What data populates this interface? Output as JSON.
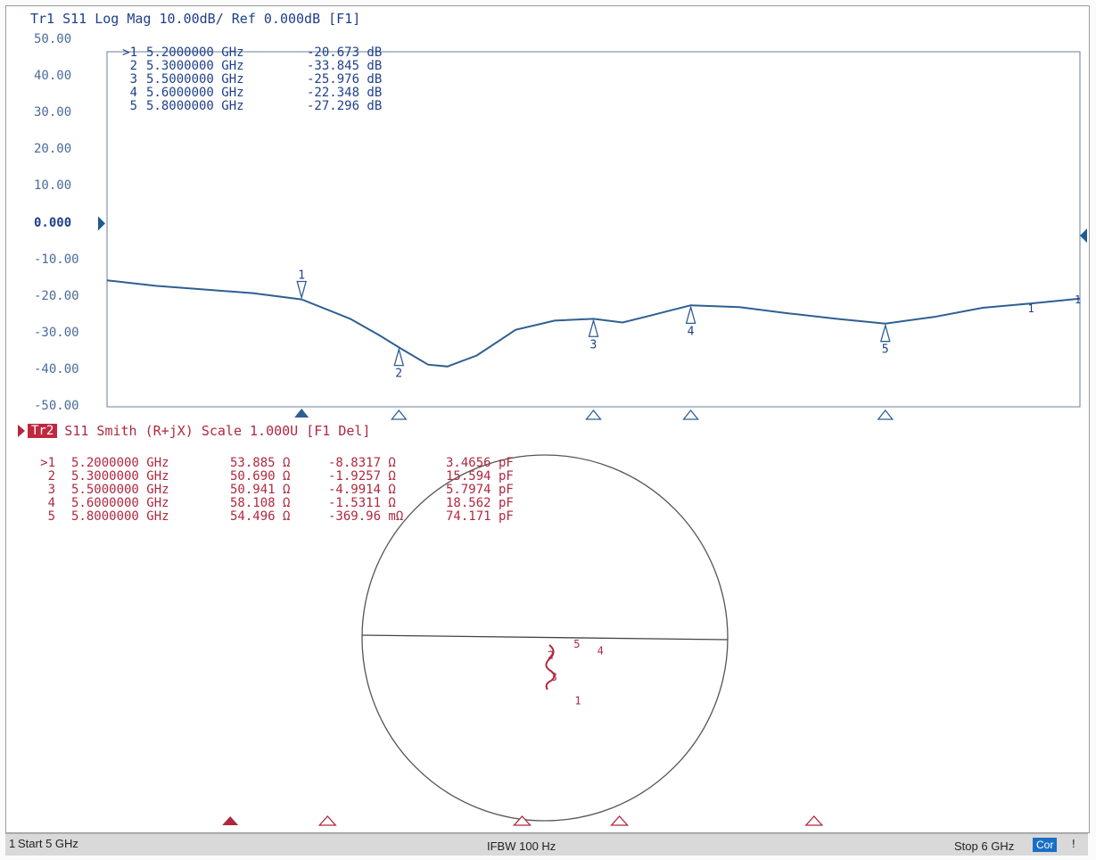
{
  "trace1": {
    "header": "Tr1 S11 Log Mag 10.00dB/ Ref 0.000dB [F1]",
    "y_ticks": [
      "50.00",
      "40.00",
      "30.00",
      "20.00",
      "10.00",
      "0.000",
      "-10.00",
      "-20.00",
      "-30.00",
      "-40.00",
      "-50.00"
    ],
    "markers": [
      {
        "id": ">1",
        "freq": "5.2000000 GHz",
        "value": "-20.673 dB"
      },
      {
        "id": "2",
        "freq": "5.3000000 GHz",
        "value": "-33.845 dB"
      },
      {
        "id": "3",
        "freq": "5.5000000 GHz",
        "value": "-25.976 dB"
      },
      {
        "id": "4",
        "freq": "5.6000000 GHz",
        "value": "-22.348 dB"
      },
      {
        "id": "5",
        "freq": "5.8000000 GHz",
        "value": "-27.296 dB"
      }
    ],
    "marker_labels": [
      "1",
      "2",
      "3",
      "4",
      "5"
    ],
    "trace_color": "#2e5f93"
  },
  "trace2": {
    "badge": "Tr2",
    "header": "S11 Smith (R+jX) Scale 1.000U [F1 Del]",
    "markers": [
      {
        "id": ">1",
        "freq": "5.2000000 GHz",
        "r": "53.885 Ω",
        "x": "-8.8317 Ω",
        "c": "3.4656 pF"
      },
      {
        "id": "2",
        "freq": "5.3000000 GHz",
        "r": "50.690 Ω",
        "x": "-1.9257 Ω",
        "c": "15.594 pF"
      },
      {
        "id": "3",
        "freq": "5.5000000 GHz",
        "r": "50.941 Ω",
        "x": "-4.9914 Ω",
        "c": "5.7974 pF"
      },
      {
        "id": "4",
        "freq": "5.6000000 GHz",
        "r": "58.108 Ω",
        "x": "-1.5311 Ω",
        "c": "18.562 pF"
      },
      {
        "id": "5",
        "freq": "5.8000000 GHz",
        "r": "54.496 Ω",
        "x": "-369.96 mΩ",
        "c": "74.171 pF"
      }
    ],
    "trace_color": "#b0283e"
  },
  "status": {
    "channel": "1",
    "start": "Start 5 GHz",
    "ifbw": "IFBW 100 Hz",
    "stop": "Stop 6 GHz",
    "cor": "Cor",
    "end": "!"
  },
  "chart_data": {
    "type": "line",
    "x_range": [
      5.0,
      6.0
    ],
    "xlabel_start": "Start 5 GHz",
    "xlabel_stop": "Stop 6 GHz",
    "ylim": [
      -50,
      50
    ],
    "y_div": 10,
    "series": [
      {
        "name": "S11",
        "x": [
          5.0,
          5.05,
          5.1,
          5.15,
          5.2,
          5.25,
          5.28,
          5.3,
          5.33,
          5.35,
          5.38,
          5.42,
          5.46,
          5.5,
          5.53,
          5.56,
          5.6,
          5.65,
          5.7,
          5.75,
          5.8,
          5.85,
          5.9,
          5.95,
          6.0
        ],
        "y": [
          -15.5,
          -17.0,
          -18.0,
          -19.0,
          -20.7,
          -26.0,
          -30.5,
          -33.8,
          -38.5,
          -39.0,
          -36.0,
          -29.0,
          -26.5,
          -26.0,
          -27.0,
          -25.0,
          -22.3,
          -22.8,
          -24.5,
          -26.0,
          -27.3,
          -25.5,
          -23.0,
          -21.8,
          -20.5
        ]
      }
    ]
  }
}
